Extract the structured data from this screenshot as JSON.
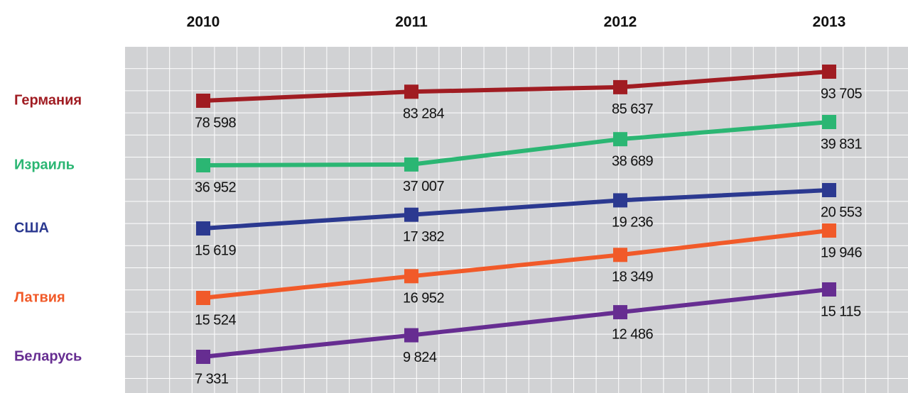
{
  "chart_data": {
    "type": "line",
    "categories": [
      "2010",
      "2011",
      "2012",
      "2013"
    ],
    "series": [
      {
        "name": "Германия",
        "color": "#a01c22",
        "values": [
          78598,
          83284,
          85637,
          93705
        ],
        "value_labels": [
          "78 598",
          "83 284",
          "85 637",
          "93 705"
        ]
      },
      {
        "name": "Израиль",
        "color": "#2bb673",
        "values": [
          36952,
          37007,
          38689,
          39831
        ],
        "value_labels": [
          "36 952",
          "37 007",
          "38 689",
          "39 831"
        ]
      },
      {
        "name": "США",
        "color": "#2b3990",
        "values": [
          15619,
          17382,
          19236,
          20553
        ],
        "value_labels": [
          "15 619",
          "17 382",
          "19 236",
          "20 553"
        ]
      },
      {
        "name": "Латвия",
        "color": "#f15a29",
        "values": [
          15524,
          16952,
          18349,
          19946
        ],
        "value_labels": [
          "15 524",
          "16 952",
          "18 349",
          "19 946"
        ]
      },
      {
        "name": "Беларусь",
        "color": "#662d91",
        "values": [
          7331,
          9824,
          12486,
          15115
        ],
        "value_labels": [
          "7 331",
          "9 824",
          "12 486",
          "15 115"
        ]
      }
    ]
  }
}
